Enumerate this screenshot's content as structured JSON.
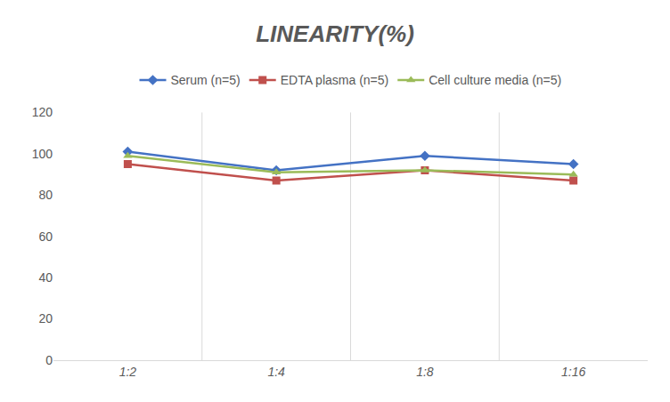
{
  "chart_data": {
    "type": "line",
    "title": "LINEARITY(%)",
    "categories": [
      "1:2",
      "1:4",
      "1:8",
      "1:16"
    ],
    "series": [
      {
        "name": "Serum (n=5)",
        "color": "#4472c4",
        "marker": "diamond",
        "values": [
          101,
          92,
          99,
          95
        ]
      },
      {
        "name": "EDTA plasma (n=5)",
        "color": "#c0504d",
        "marker": "square",
        "values": [
          95,
          87,
          92,
          87
        ]
      },
      {
        "name": "Cell culture media (n=5)",
        "color": "#9bbb59",
        "marker": "triangle-up",
        "values": [
          99,
          91,
          92,
          90
        ]
      }
    ],
    "ylim": [
      0,
      120
    ],
    "yticks": [
      0,
      20,
      40,
      60,
      80,
      100,
      120
    ],
    "grid": true,
    "legend": "top"
  }
}
